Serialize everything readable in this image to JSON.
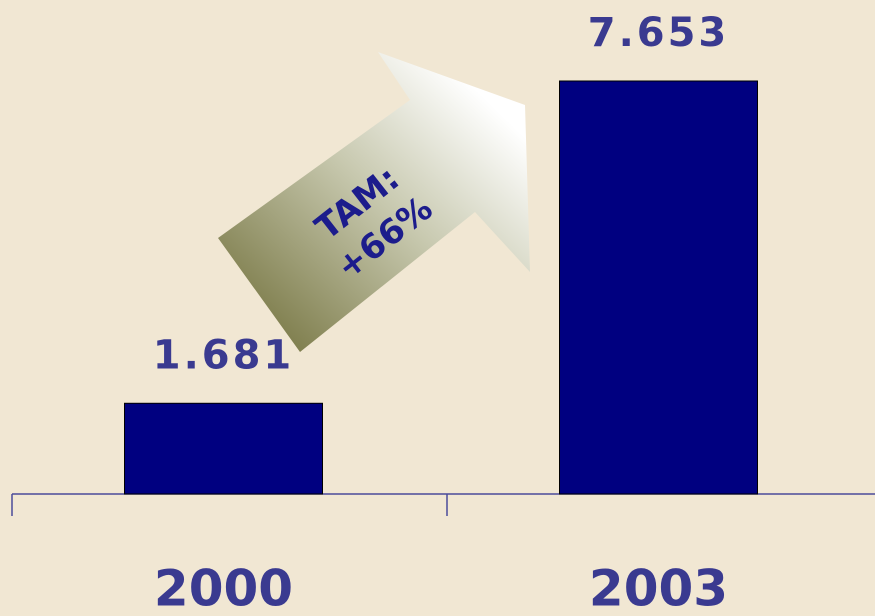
{
  "chart_data": {
    "type": "bar",
    "categories": [
      "2000",
      "2003"
    ],
    "values": [
      1.681,
      7.653
    ],
    "color": "#000080",
    "annotation": [
      "TAM:",
      "+66%"
    ]
  }
}
